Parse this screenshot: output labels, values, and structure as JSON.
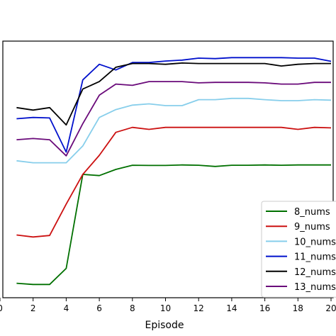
{
  "chart_data": {
    "type": "line",
    "xlabel": "Episode",
    "ylabel": "",
    "title": "",
    "xlim": [
      0,
      20
    ],
    "ylim": [
      0,
      1
    ],
    "x_ticks": [
      0,
      2,
      4,
      6,
      8,
      10,
      12,
      14,
      16,
      18,
      20
    ],
    "x": [
      1,
      2,
      3,
      4,
      5,
      6,
      7,
      8,
      9,
      10,
      11,
      12,
      13,
      14,
      15,
      16,
      17,
      18,
      19,
      20
    ],
    "legend_position": "lower-right",
    "grid": false,
    "series": [
      {
        "name": "8_nums",
        "color": "#007000",
        "values": [
          0.05,
          0.045,
          0.045,
          0.11,
          0.49,
          0.485,
          0.51,
          0.527,
          0.526,
          0.526,
          0.528,
          0.527,
          0.522,
          0.527,
          0.527,
          0.528,
          0.527,
          0.528,
          0.528,
          0.528
        ]
      },
      {
        "name": "9_nums",
        "color": "#cc1111",
        "values": [
          0.245,
          0.237,
          0.243,
          0.37,
          0.49,
          0.567,
          0.66,
          0.68,
          0.672,
          0.68,
          0.68,
          0.68,
          0.68,
          0.68,
          0.68,
          0.68,
          0.68,
          0.672,
          0.68,
          0.678
        ]
      },
      {
        "name": "10_nums",
        "color": "#87ceeb",
        "values": [
          0.545,
          0.537,
          0.537,
          0.537,
          0.605,
          0.72,
          0.752,
          0.77,
          0.775,
          0.768,
          0.768,
          0.792,
          0.792,
          0.797,
          0.797,
          0.792,
          0.788,
          0.788,
          0.792,
          0.79
        ]
      },
      {
        "name": "11_nums",
        "color": "#0010cc",
        "values": [
          0.715,
          0.72,
          0.718,
          0.58,
          0.872,
          0.935,
          0.912,
          0.942,
          0.942,
          0.948,
          0.952,
          0.96,
          0.958,
          0.962,
          0.962,
          0.962,
          0.962,
          0.96,
          0.96,
          0.947
        ]
      },
      {
        "name": "12_nums",
        "color": "#000000",
        "values": [
          0.76,
          0.75,
          0.76,
          0.69,
          0.835,
          0.865,
          0.923,
          0.938,
          0.938,
          0.935,
          0.94,
          0.938,
          0.938,
          0.938,
          0.938,
          0.938,
          0.928,
          0.935,
          0.938,
          0.938
        ]
      },
      {
        "name": "13_nums",
        "color": "#6a0a7a",
        "values": [
          0.63,
          0.635,
          0.63,
          0.565,
          0.695,
          0.81,
          0.855,
          0.85,
          0.865,
          0.865,
          0.865,
          0.86,
          0.862,
          0.862,
          0.862,
          0.86,
          0.855,
          0.855,
          0.862,
          0.862
        ]
      }
    ]
  }
}
